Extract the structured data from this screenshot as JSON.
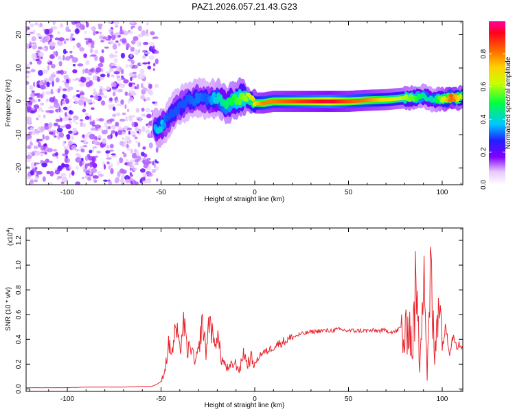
{
  "title": "PAZ1.2026.057.21.43.G23",
  "colors": {
    "snr_line": "#e8232b",
    "axis": "#000000"
  },
  "chart_data": [
    {
      "type": "heatmap",
      "name": "spectrogram",
      "xlabel": "Height of straight line (km)",
      "ylabel": "Frequency (Hz)",
      "xlim": [
        -122,
        111
      ],
      "ylim": [
        -25,
        24
      ],
      "xticks": [
        -100,
        -50,
        0,
        50,
        100
      ],
      "xtick_labels": [
        "-100",
        "-50",
        "0",
        "50",
        "100"
      ],
      "yticks": [
        -20,
        -10,
        0,
        10,
        20
      ],
      "ytick_labels": [
        "-20",
        "-10",
        "0",
        "10",
        "20"
      ],
      "colorbar": {
        "label": "Normalized spectral amplitude",
        "range": [
          0,
          1
        ],
        "ticks": [
          0.0,
          0.2,
          0.4,
          0.6,
          0.8
        ],
        "tick_labels": [
          "0.0",
          "0.2",
          "0.4",
          "0.6",
          "0.8"
        ]
      },
      "noise_region": {
        "x_range": [
          -122,
          -52
        ],
        "y_range": [
          -25,
          24
        ],
        "amplitude": [
          0.05,
          0.2
        ]
      },
      "track": [
        {
          "x": -53,
          "y": -8,
          "amplitude": 0.35
        },
        {
          "x": -50,
          "y": -7.5,
          "amplitude": 0.4
        },
        {
          "x": -47,
          "y": -6,
          "amplitude": 0.3
        },
        {
          "x": -43,
          "y": -3,
          "amplitude": 0.3
        },
        {
          "x": -40,
          "y": -1.5,
          "amplitude": 0.3
        },
        {
          "x": -36,
          "y": 0,
          "amplitude": 0.3
        },
        {
          "x": -30,
          "y": 1,
          "amplitude": 0.32
        },
        {
          "x": -25,
          "y": 0.5,
          "amplitude": 0.3
        },
        {
          "x": -20,
          "y": 1,
          "amplitude": 0.4
        },
        {
          "x": -16,
          "y": -1,
          "amplitude": 0.45
        },
        {
          "x": -12,
          "y": 0,
          "amplitude": 0.5
        },
        {
          "x": -8,
          "y": 1,
          "amplitude": 0.55
        },
        {
          "x": -4,
          "y": 1,
          "amplitude": 0.6
        },
        {
          "x": 0,
          "y": -0.5,
          "amplitude": 0.7
        },
        {
          "x": 5,
          "y": -0.5,
          "amplitude": 0.8
        },
        {
          "x": 10,
          "y": 0,
          "amplitude": 0.8
        },
        {
          "x": 20,
          "y": 0,
          "amplitude": 0.85
        },
        {
          "x": 30,
          "y": 0,
          "amplitude": 0.9
        },
        {
          "x": 40,
          "y": 0,
          "amplitude": 0.95
        },
        {
          "x": 50,
          "y": 0,
          "amplitude": 0.85
        },
        {
          "x": 60,
          "y": 0.3,
          "amplitude": 0.8
        },
        {
          "x": 70,
          "y": 0.5,
          "amplitude": 0.7
        },
        {
          "x": 80,
          "y": 1,
          "amplitude": 0.6
        },
        {
          "x": 85,
          "y": 1,
          "amplitude": 0.55
        },
        {
          "x": 90,
          "y": 1.5,
          "amplitude": 0.45
        },
        {
          "x": 95,
          "y": 0.5,
          "amplitude": 0.4
        },
        {
          "x": 100,
          "y": 0.5,
          "amplitude": 0.6
        },
        {
          "x": 105,
          "y": 1,
          "amplitude": 0.85
        },
        {
          "x": 111,
          "y": 1,
          "amplitude": 0.6
        }
      ]
    },
    {
      "type": "line",
      "name": "snr",
      "xlabel": "Height of straight line (km)",
      "ylabel": "SNR (10 * v/v)",
      "y_multiplier": "(x10",
      "y_exponent": "4",
      "xlim": [
        -122,
        111
      ],
      "ylim": [
        -0.02,
        1.3
      ],
      "xticks": [
        -100,
        -50,
        0,
        50,
        100
      ],
      "xtick_labels": [
        "-100",
        "-50",
        "0",
        "50",
        "100"
      ],
      "yticks": [
        0.0,
        0.2,
        0.4,
        0.6,
        0.8,
        1.0,
        1.2
      ],
      "ytick_labels": [
        "0.0",
        "0.2",
        "0.4",
        "0.6",
        "0.8",
        "1.0",
        "1.2"
      ],
      "series": [
        {
          "name": "SNR",
          "x": [
            -122,
            -110,
            -100,
            -90,
            -80,
            -70,
            -60,
            -55,
            -52,
            -50,
            -48,
            -46,
            -44,
            -42,
            -40,
            -38,
            -36,
            -34,
            -32,
            -30,
            -28,
            -26,
            -24,
            -22,
            -20,
            -18,
            -16,
            -14,
            -12,
            -10,
            -8,
            -6,
            -4,
            -2,
            0,
            3,
            6,
            9,
            12,
            15,
            18,
            21,
            24,
            27,
            30,
            35,
            40,
            45,
            50,
            55,
            60,
            65,
            70,
            75,
            78,
            80,
            82,
            84,
            86,
            88,
            90,
            92,
            94,
            96,
            98,
            100,
            102,
            104,
            106,
            108,
            111
          ],
          "y": [
            0.01,
            0.01,
            0.01,
            0.015,
            0.015,
            0.015,
            0.02,
            0.02,
            0.04,
            0.06,
            0.15,
            0.35,
            0.3,
            0.5,
            0.3,
            0.55,
            0.3,
            0.35,
            0.2,
            0.3,
            0.55,
            0.3,
            0.6,
            0.35,
            0.45,
            0.25,
            0.2,
            0.15,
            0.2,
            0.2,
            0.15,
            0.3,
            0.2,
            0.25,
            0.2,
            0.28,
            0.3,
            0.33,
            0.36,
            0.38,
            0.4,
            0.42,
            0.44,
            0.45,
            0.46,
            0.47,
            0.47,
            0.48,
            0.47,
            0.47,
            0.47,
            0.47,
            0.47,
            0.46,
            0.5,
            0.35,
            0.6,
            0.3,
            0.85,
            0.2,
            1.2,
            0.1,
            0.95,
            0.2,
            0.9,
            0.35,
            0.5,
            0.3,
            0.45,
            0.35,
            0.35
          ]
        }
      ]
    }
  ]
}
